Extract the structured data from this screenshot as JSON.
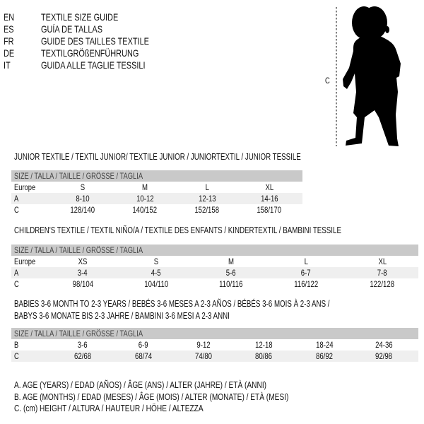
{
  "languages": [
    {
      "code": "EN",
      "title": "TEXTILE SIZE GUIDE"
    },
    {
      "code": "ES",
      "title": "GUÍA DE TALLAS"
    },
    {
      "code": "FR",
      "title": "GUIDE DES TAILLES TEXTILE"
    },
    {
      "code": "DE",
      "title": "TEXTILGRÖßENFÜHRUNG"
    },
    {
      "code": "IT",
      "title": "GUIDA ALLE TAGLIE TESSILI"
    }
  ],
  "figure": {
    "measure_label": "C",
    "icon": "baby-silhouette"
  },
  "sections": [
    {
      "heading": [
        "JUNIOR TEXTILE / TEXTIL JUNIOR/ TEXTILE JUNIOR / JUNIORTEXTIL / JUNIOR TESSILE"
      ],
      "size_header": "SIZE / TALLA / TAILLE / GRÖSSE / TAGLIA",
      "rows": [
        {
          "label": "Europe",
          "values": [
            "S",
            "M",
            "L",
            "XL"
          ]
        },
        {
          "label": "A",
          "values": [
            "8-10",
            "10-12",
            "12-13",
            "14-16"
          ]
        },
        {
          "label": "C",
          "values": [
            "128/140",
            "140/152",
            "152/158",
            "158/170"
          ]
        }
      ]
    },
    {
      "heading": [
        "CHILDREN'S TEXTILE / TEXTIL NIÑO/A / TEXTILE DES ENFANTS / KINDERTEXTIL / BAMBINI TESSILE"
      ],
      "size_header": "SIZE / TALLA / TAILLE / GRÖSSE / TAGLIA",
      "rows": [
        {
          "label": "Europe",
          "values": [
            "XS",
            "S",
            "M",
            "L",
            "XL"
          ]
        },
        {
          "label": "A",
          "values": [
            "3-4",
            "4-5",
            "5-6",
            "6-7",
            "7-8"
          ]
        },
        {
          "label": "C",
          "values": [
            "98/104",
            "104/110",
            "110/116",
            "116/122",
            "122/128"
          ]
        }
      ]
    },
    {
      "heading": [
        "BABIES 3-6 MONTH TO 2-3 YEARS / BEBÉS 3-6 MESES A 2-3 AÑOS / BÉBÉS 3-6 MOIS À 2-3 ANS /",
        "BABYS 3-6 MONATE BIS 2-3 JAHRE / BAMBINI 3-6 MESI A 2-3 ANNI"
      ],
      "size_header": "SIZE / TALLA / TAILLE / GRÖSSE / TAGLIA",
      "rows": [
        {
          "label": "B",
          "values": [
            "3-6",
            "6-9",
            "9-12",
            "12-18",
            "18-24",
            "24-36"
          ]
        },
        {
          "label": "C",
          "values": [
            "62/68",
            "68/74",
            "74/80",
            "80/86",
            "86/92",
            "92/98"
          ]
        }
      ]
    }
  ],
  "legend": [
    "A. AGE (YEARS) / EDAD (AÑOS) / ÂGE (ANS) / ALTER (JAHRE) / ETÀ (ANNI)",
    "B. AGE (MONTHS) / EDAD (MESES) / ÂGE (MOIS) / ALTER (MONATE) / ETÀ (MESI)",
    "C. (cm) HEIGHT / ALTURA / HAUTEUR / HÖHE / ALTEZZA"
  ],
  "colors": {
    "header_bar": "#c9c9c9",
    "shaded_row": "#efefef",
    "text": "#111111"
  }
}
